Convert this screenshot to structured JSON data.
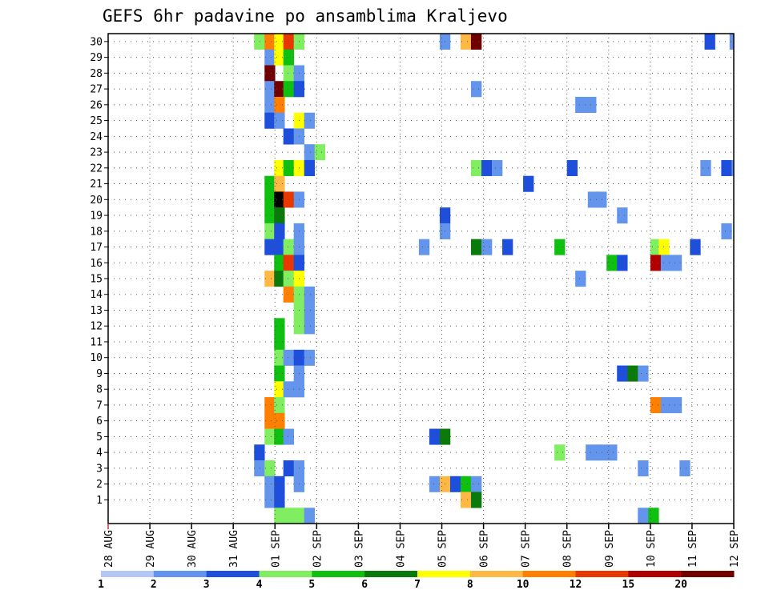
{
  "chart_data": {
    "type": "heatmap",
    "title": "GEFS 6hr padavine po ansamblima Kraljevo",
    "xlabel": "",
    "ylabel": "",
    "x_ticks": [
      "28 AUG",
      "29 AUG",
      "30 AUG",
      "31 AUG",
      "01 SEP",
      "02 SEP",
      "03 SEP",
      "04 SEP",
      "05 SEP",
      "06 SEP",
      "07 SEP",
      "08 SEP",
      "09 SEP",
      "10 SEP",
      "11 SEP",
      "12 SEP"
    ],
    "y_ticks": [
      "1",
      "2",
      "3",
      "4",
      "5",
      "6",
      "7",
      "8",
      "9",
      "10",
      "11",
      "12",
      "13",
      "14",
      "15",
      "16",
      "17",
      "18",
      "19",
      "20",
      "21",
      "22",
      "23",
      "24",
      "25",
      "26",
      "27",
      "28",
      "29",
      "30"
    ],
    "x_range_days": [
      0,
      15
    ],
    "y_range": [
      0,
      30
    ],
    "grid": true,
    "colorbar": {
      "labels": [
        "1",
        "2",
        "3",
        "4",
        "5",
        "6",
        "7",
        "8",
        "10",
        "12",
        "15",
        "20"
      ],
      "colors": [
        "#b3c7f7",
        "#6495ed",
        "#1e4fdc",
        "#80ee60",
        "#10c010",
        "#0a7a0a",
        "#ffff00",
        "#ffb844",
        "#ff8000",
        "#e83800",
        "#b00000",
        "#700000"
      ]
    },
    "cells": [
      [
        30,
        3.5,
        3
      ],
      [
        30,
        3.75,
        8
      ],
      [
        30,
        3.98,
        6
      ],
      [
        30,
        4.2,
        9
      ],
      [
        30,
        4.45,
        3
      ],
      [
        30,
        7.95,
        1
      ],
      [
        30,
        8.45,
        7
      ],
      [
        30,
        8.7,
        11
      ],
      [
        30,
        14.3,
        2
      ],
      [
        30,
        14.9,
        1
      ],
      [
        29,
        3.75,
        1
      ],
      [
        29,
        3.98,
        6
      ],
      [
        29,
        4.2,
        4
      ],
      [
        29,
        15.75,
        1
      ],
      [
        28,
        3.75,
        11
      ],
      [
        28,
        4.2,
        3
      ],
      [
        28,
        4.45,
        1
      ],
      [
        28,
        16.7,
        1
      ],
      [
        27,
        3.75,
        1
      ],
      [
        27,
        3.98,
        11
      ],
      [
        27,
        4.2,
        4
      ],
      [
        27,
        4.45,
        2
      ],
      [
        27,
        8.7,
        1
      ],
      [
        26,
        3.75,
        1
      ],
      [
        26,
        3.98,
        8
      ],
      [
        26,
        11.2,
        1
      ],
      [
        26,
        11.45,
        1
      ],
      [
        26,
        15.25,
        5
      ],
      [
        26,
        15.5,
        3
      ],
      [
        25,
        3.75,
        2
      ],
      [
        25,
        3.98,
        1
      ],
      [
        25,
        4.45,
        6
      ],
      [
        25,
        4.7,
        1
      ],
      [
        24,
        4.2,
        2
      ],
      [
        24,
        4.45,
        1
      ],
      [
        23,
        4.7,
        1
      ],
      [
        23,
        4.95,
        3
      ],
      [
        22,
        3.98,
        6
      ],
      [
        22,
        4.2,
        4
      ],
      [
        22,
        4.45,
        6
      ],
      [
        22,
        4.7,
        2
      ],
      [
        22,
        8.7,
        3
      ],
      [
        22,
        8.95,
        2
      ],
      [
        22,
        9.2,
        1
      ],
      [
        22,
        11.0,
        2
      ],
      [
        22,
        14.2,
        1
      ],
      [
        22,
        14.7,
        2
      ],
      [
        22,
        14.95,
        1
      ],
      [
        22,
        15.2,
        1
      ],
      [
        22,
        15.7,
        1
      ],
      [
        21,
        3.75,
        4
      ],
      [
        21,
        3.98,
        7
      ],
      [
        21,
        9.95,
        2
      ],
      [
        20,
        3.75,
        4
      ],
      [
        20,
        3.98,
        12
      ],
      [
        20,
        4.2,
        9
      ],
      [
        20,
        4.45,
        1
      ],
      [
        20,
        11.5,
        1
      ],
      [
        20,
        11.7,
        1
      ],
      [
        20,
        16.95,
        2
      ],
      [
        19,
        3.75,
        4
      ],
      [
        19,
        3.98,
        5
      ],
      [
        19,
        7.95,
        2
      ],
      [
        19,
        12.2,
        1
      ],
      [
        19,
        16.75,
        1
      ],
      [
        18,
        3.75,
        3
      ],
      [
        18,
        3.98,
        2
      ],
      [
        18,
        4.45,
        1
      ],
      [
        18,
        7.95,
        1
      ],
      [
        18,
        14.7,
        1
      ],
      [
        18,
        15.95,
        1
      ],
      [
        17,
        3.75,
        2
      ],
      [
        17,
        3.98,
        2
      ],
      [
        17,
        4.2,
        3
      ],
      [
        17,
        4.45,
        1
      ],
      [
        17,
        7.45,
        1
      ],
      [
        17,
        8.7,
        5
      ],
      [
        17,
        8.95,
        1
      ],
      [
        17,
        9.45,
        2
      ],
      [
        17,
        10.7,
        4
      ],
      [
        17,
        13.0,
        3
      ],
      [
        17,
        13.2,
        6
      ],
      [
        17,
        13.95,
        2
      ],
      [
        17,
        16.45,
        7
      ],
      [
        17,
        16.7,
        1
      ],
      [
        16,
        3.98,
        4
      ],
      [
        16,
        4.2,
        9
      ],
      [
        16,
        4.45,
        2
      ],
      [
        16,
        11.95,
        4
      ],
      [
        16,
        12.2,
        2
      ],
      [
        16,
        13.0,
        10
      ],
      [
        16,
        13.25,
        1
      ],
      [
        16,
        13.5,
        1
      ],
      [
        15,
        3.75,
        7
      ],
      [
        15,
        3.98,
        5
      ],
      [
        15,
        4.2,
        3
      ],
      [
        15,
        4.45,
        6
      ],
      [
        15,
        11.2,
        1
      ],
      [
        14,
        4.2,
        8
      ],
      [
        14,
        4.45,
        3
      ],
      [
        14,
        4.7,
        1
      ],
      [
        13,
        4.45,
        3
      ],
      [
        13,
        4.7,
        1
      ],
      [
        12,
        3.98,
        4
      ],
      [
        12,
        4.45,
        3
      ],
      [
        12,
        4.7,
        1
      ],
      [
        11,
        3.98,
        4
      ],
      [
        10,
        3.98,
        3
      ],
      [
        10,
        4.2,
        1
      ],
      [
        10,
        4.45,
        2
      ],
      [
        10,
        4.7,
        1
      ],
      [
        10,
        15.6,
        2
      ],
      [
        9,
        3.98,
        4
      ],
      [
        9,
        4.45,
        1
      ],
      [
        9,
        12.2,
        2
      ],
      [
        9,
        12.45,
        5
      ],
      [
        9,
        12.7,
        1
      ],
      [
        8,
        3.98,
        6
      ],
      [
        8,
        4.2,
        1
      ],
      [
        8,
        4.45,
        1
      ],
      [
        7,
        3.75,
        8
      ],
      [
        7,
        3.98,
        3
      ],
      [
        7,
        13.0,
        8
      ],
      [
        7,
        13.25,
        1
      ],
      [
        7,
        13.5,
        1
      ],
      [
        6,
        3.75,
        8
      ],
      [
        6,
        3.98,
        8
      ],
      [
        5,
        3.75,
        3
      ],
      [
        5,
        3.98,
        4
      ],
      [
        5,
        4.2,
        1
      ],
      [
        5,
        7.7,
        2
      ],
      [
        5,
        7.95,
        5
      ],
      [
        5,
        15.95,
        6
      ],
      [
        5,
        16.2,
        1
      ],
      [
        5,
        16.45,
        2
      ],
      [
        4,
        3.5,
        2
      ],
      [
        4,
        10.7,
        3
      ],
      [
        4,
        11.45,
        1
      ],
      [
        4,
        11.7,
        1
      ],
      [
        4,
        11.95,
        1
      ],
      [
        3,
        3.5,
        1
      ],
      [
        3,
        3.75,
        3
      ],
      [
        3,
        4.2,
        2
      ],
      [
        3,
        4.45,
        1
      ],
      [
        3,
        12.7,
        1
      ],
      [
        3,
        13.7,
        1
      ],
      [
        2,
        3.75,
        1
      ],
      [
        2,
        3.98,
        2
      ],
      [
        2,
        4.45,
        1
      ],
      [
        2,
        7.7,
        1
      ],
      [
        2,
        7.95,
        7
      ],
      [
        2,
        8.2,
        2
      ],
      [
        2,
        8.45,
        4
      ],
      [
        2,
        8.7,
        1
      ],
      [
        2,
        15.0,
        2
      ],
      [
        2,
        15.25,
        2
      ],
      [
        2,
        15.5,
        3
      ],
      [
        2,
        15.7,
        2
      ],
      [
        2,
        15.95,
        3
      ],
      [
        2,
        16.2,
        1
      ],
      [
        2,
        16.7,
        1
      ],
      [
        2,
        16.95,
        4
      ],
      [
        1,
        3.75,
        1
      ],
      [
        1,
        3.98,
        2
      ],
      [
        1,
        8.45,
        7
      ],
      [
        1,
        8.7,
        5
      ],
      [
        1,
        15.25,
        1
      ],
      [
        1,
        15.5,
        1
      ],
      [
        1,
        15.7,
        2
      ],
      [
        1,
        15.95,
        1
      ],
      [
        1,
        16.2,
        6
      ],
      [
        0,
        3.98,
        3
      ],
      [
        0,
        4.2,
        3
      ],
      [
        0,
        4.45,
        3
      ],
      [
        0,
        4.7,
        1
      ],
      [
        0,
        12.7,
        1
      ],
      [
        0,
        12.95,
        4
      ]
    ]
  }
}
